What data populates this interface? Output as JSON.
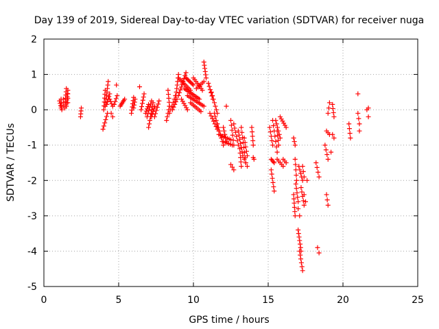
{
  "chart_data": {
    "type": "scatter",
    "title": "Day 139 of 2019, Sidereal Day-to-day VTEC variation (SDTVAR) for receiver nuga",
    "xlabel": "GPS time / hours",
    "ylabel": "SDTVAR / TECUs",
    "xlim": [
      0,
      25
    ],
    "ylim": [
      -5,
      2
    ],
    "xticks": [
      0,
      5,
      10,
      15,
      20,
      25
    ],
    "yticks": [
      -5,
      -4,
      -3,
      -2,
      -1,
      0,
      1,
      2
    ],
    "grid": true,
    "marker": "+",
    "colors": {
      "points": "#ff0000",
      "axes": "#000000",
      "grid": "#a0a0a0"
    },
    "segments": [
      {
        "x0": 1.05,
        "y0": 0.25,
        "x1": 1.15,
        "y1": 0.05,
        "n": 4
      },
      {
        "x0": 1.15,
        "y0": 0.3,
        "x1": 1.2,
        "y1": 0.0,
        "n": 4
      },
      {
        "x0": 1.3,
        "y0": 0.1,
        "x1": 1.3,
        "y1": 0.3,
        "n": 3
      },
      {
        "x0": 1.4,
        "y0": 0.05,
        "x1": 1.5,
        "y1": 0.6,
        "n": 7
      },
      {
        "x0": 1.5,
        "y0": 0.1,
        "x1": 1.6,
        "y1": 0.55,
        "n": 6
      },
      {
        "x0": 1.6,
        "y0": 0.2,
        "x1": 1.6,
        "y1": 0.45,
        "n": 3
      },
      {
        "x0": 2.45,
        "y0": -0.2,
        "x1": 2.5,
        "y1": 0.05,
        "n": 4
      },
      {
        "x0": 3.95,
        "y0": -0.55,
        "x1": 4.25,
        "y1": -0.1,
        "n": 6
      },
      {
        "x0": 4.0,
        "y0": 0.0,
        "x1": 4.1,
        "y1": 0.55,
        "n": 6
      },
      {
        "x0": 4.1,
        "y0": 0.1,
        "x1": 4.3,
        "y1": 0.8,
        "n": 8
      },
      {
        "x0": 4.2,
        "y0": 0.15,
        "x1": 4.4,
        "y1": 0.45,
        "n": 5
      },
      {
        "x0": 4.4,
        "y0": 0.3,
        "x1": 4.6,
        "y1": 0.1,
        "n": 4
      },
      {
        "x0": 4.5,
        "y0": -0.1,
        "x1": 4.6,
        "y1": -0.2,
        "n": 2
      },
      {
        "x0": 4.7,
        "y0": 0.15,
        "x1": 4.9,
        "y1": 0.4,
        "n": 4
      },
      {
        "x0": 4.85,
        "y0": 0.7,
        "x1": 4.85,
        "y1": 0.7,
        "n": 1
      },
      {
        "x0": 5.1,
        "y0": 0.1,
        "x1": 5.4,
        "y1": 0.3,
        "n": 6
      },
      {
        "x0": 5.85,
        "y0": -0.1,
        "x1": 6.0,
        "y1": 0.35,
        "n": 6
      },
      {
        "x0": 6.0,
        "y0": 0.05,
        "x1": 6.1,
        "y1": 0.3,
        "n": 4
      },
      {
        "x0": 6.4,
        "y0": 0.65,
        "x1": 6.4,
        "y1": 0.65,
        "n": 1
      },
      {
        "x0": 6.5,
        "y0": 0.0,
        "x1": 6.7,
        "y1": 0.45,
        "n": 6
      },
      {
        "x0": 6.8,
        "y0": -0.1,
        "x1": 7.0,
        "y1": 0.15,
        "n": 5
      },
      {
        "x0": 6.9,
        "y0": -0.2,
        "x1": 7.2,
        "y1": 0.25,
        "n": 6
      },
      {
        "x0": 7.0,
        "y0": -0.5,
        "x1": 7.3,
        "y1": 0.2,
        "n": 8
      },
      {
        "x0": 7.2,
        "y0": -0.2,
        "x1": 7.4,
        "y1": 0.1,
        "n": 5
      },
      {
        "x0": 7.4,
        "y0": -0.2,
        "x1": 7.7,
        "y1": 0.25,
        "n": 6
      },
      {
        "x0": 8.3,
        "y0": 0.55,
        "x1": 8.4,
        "y1": 0.1,
        "n": 5
      },
      {
        "x0": 8.2,
        "y0": -0.3,
        "x1": 8.4,
        "y1": 0.1,
        "n": 5
      },
      {
        "x0": 8.4,
        "y0": -0.1,
        "x1": 8.8,
        "y1": 0.4,
        "n": 6
      },
      {
        "x0": 8.6,
        "y0": 0.0,
        "x1": 8.9,
        "y1": 0.3,
        "n": 5
      },
      {
        "x0": 8.8,
        "y0": 0.3,
        "x1": 9.0,
        "y1": 1.0,
        "n": 8
      },
      {
        "x0": 9.0,
        "y0": 0.4,
        "x1": 9.5,
        "y1": 1.05,
        "n": 9
      },
      {
        "x0": 9.0,
        "y0": 0.9,
        "x1": 9.8,
        "y1": 0.55,
        "n": 10
      },
      {
        "x0": 9.2,
        "y0": 0.3,
        "x1": 9.6,
        "y1": 0.0,
        "n": 6
      },
      {
        "x0": 9.5,
        "y0": 0.9,
        "x1": 10.0,
        "y1": 0.7,
        "n": 8
      },
      {
        "x0": 9.4,
        "y0": 0.6,
        "x1": 10.4,
        "y1": 0.3,
        "n": 12
      },
      {
        "x0": 9.6,
        "y0": 0.4,
        "x1": 10.7,
        "y1": 0.1,
        "n": 12
      },
      {
        "x0": 9.8,
        "y0": 0.2,
        "x1": 10.5,
        "y1": -0.05,
        "n": 8
      },
      {
        "x0": 10.0,
        "y0": 0.9,
        "x1": 10.6,
        "y1": 0.55,
        "n": 8
      },
      {
        "x0": 10.2,
        "y0": 0.6,
        "x1": 10.7,
        "y1": 0.8,
        "n": 6
      },
      {
        "x0": 10.7,
        "y0": 1.35,
        "x1": 10.85,
        "y1": 0.9,
        "n": 6
      },
      {
        "x0": 11.0,
        "y0": 0.75,
        "x1": 11.3,
        "y1": 0.3,
        "n": 6
      },
      {
        "x0": 11.2,
        "y0": 0.5,
        "x1": 11.6,
        "y1": -0.1,
        "n": 7
      },
      {
        "x0": 11.1,
        "y0": -0.1,
        "x1": 11.6,
        "y1": -0.55,
        "n": 7
      },
      {
        "x0": 11.4,
        "y0": -0.1,
        "x1": 11.7,
        "y1": -0.6,
        "n": 6
      },
      {
        "x0": 11.6,
        "y0": -0.4,
        "x1": 12.0,
        "y1": -1.0,
        "n": 7
      },
      {
        "x0": 11.7,
        "y0": -0.7,
        "x1": 12.5,
        "y1": -0.85,
        "n": 8
      },
      {
        "x0": 12.0,
        "y0": -0.9,
        "x1": 12.6,
        "y1": -1.0,
        "n": 6
      },
      {
        "x0": 12.0,
        "y0": -0.5,
        "x1": 12.2,
        "y1": -0.9,
        "n": 5
      },
      {
        "x0": 12.2,
        "y0": 0.1,
        "x1": 12.2,
        "y1": 0.1,
        "n": 1
      },
      {
        "x0": 12.5,
        "y0": -1.55,
        "x1": 12.7,
        "y1": -1.7,
        "n": 3
      },
      {
        "x0": 12.5,
        "y0": -0.3,
        "x1": 12.7,
        "y1": -1.0,
        "n": 6
      },
      {
        "x0": 12.7,
        "y0": -0.4,
        "x1": 13.0,
        "y1": -1.0,
        "n": 6
      },
      {
        "x0": 13.0,
        "y0": -0.6,
        "x1": 13.3,
        "y1": -1.3,
        "n": 7
      },
      {
        "x0": 13.1,
        "y0": -1.1,
        "x1": 13.2,
        "y1": -1.6,
        "n": 5
      },
      {
        "x0": 13.2,
        "y0": -0.5,
        "x1": 13.5,
        "y1": -1.5,
        "n": 8
      },
      {
        "x0": 13.4,
        "y0": -0.8,
        "x1": 13.6,
        "y1": -1.3,
        "n": 5
      },
      {
        "x0": 13.4,
        "y0": -1.4,
        "x1": 13.6,
        "y1": -1.6,
        "n": 3
      },
      {
        "x0": 13.9,
        "y0": -0.5,
        "x1": 14.0,
        "y1": -1.0,
        "n": 5
      },
      {
        "x0": 14.0,
        "y0": -1.35,
        "x1": 14.05,
        "y1": -1.4,
        "n": 2
      },
      {
        "x0": 15.1,
        "y0": -0.5,
        "x1": 15.3,
        "y1": -1.0,
        "n": 5
      },
      {
        "x0": 15.2,
        "y0": -1.4,
        "x1": 15.4,
        "y1": -1.5,
        "n": 4
      },
      {
        "x0": 15.2,
        "y0": -1.7,
        "x1": 15.4,
        "y1": -2.3,
        "n": 6
      },
      {
        "x0": 15.3,
        "y0": -0.3,
        "x1": 15.6,
        "y1": -1.2,
        "n": 7
      },
      {
        "x0": 15.5,
        "y0": -0.3,
        "x1": 15.8,
        "y1": -0.8,
        "n": 6
      },
      {
        "x0": 15.6,
        "y0": -0.6,
        "x1": 15.7,
        "y1": -1.0,
        "n": 4
      },
      {
        "x0": 15.8,
        "y0": -0.2,
        "x1": 16.2,
        "y1": -0.5,
        "n": 6
      },
      {
        "x0": 15.6,
        "y0": -1.4,
        "x1": 16.0,
        "y1": -1.6,
        "n": 5
      },
      {
        "x0": 16.0,
        "y0": -1.4,
        "x1": 16.2,
        "y1": -1.5,
        "n": 3
      },
      {
        "x0": 16.7,
        "y0": -0.8,
        "x1": 16.8,
        "y1": -1.0,
        "n": 3
      },
      {
        "x0": 16.7,
        "y0": -2.4,
        "x1": 16.8,
        "y1": -3.0,
        "n": 6
      },
      {
        "x0": 16.8,
        "y0": -1.4,
        "x1": 16.9,
        "y1": -2.0,
        "n": 5
      },
      {
        "x0": 16.85,
        "y0": -2.1,
        "x1": 17.0,
        "y1": -2.6,
        "n": 5
      },
      {
        "x0": 17.0,
        "y0": -2.8,
        "x1": 17.1,
        "y1": -3.0,
        "n": 2
      },
      {
        "x0": 17.0,
        "y0": -3.4,
        "x1": 17.2,
        "y1": -4.0,
        "n": 7
      },
      {
        "x0": 17.05,
        "y0": -1.6,
        "x1": 17.3,
        "y1": -2.0,
        "n": 5
      },
      {
        "x0": 17.1,
        "y0": -4.0,
        "x1": 17.3,
        "y1": -4.55,
        "n": 6
      },
      {
        "x0": 17.2,
        "y0": -2.2,
        "x1": 17.4,
        "y1": -2.7,
        "n": 5
      },
      {
        "x0": 17.3,
        "y0": -1.6,
        "x1": 17.4,
        "y1": -1.9,
        "n": 3
      },
      {
        "x0": 17.4,
        "y0": -2.4,
        "x1": 17.5,
        "y1": -2.6,
        "n": 2
      },
      {
        "x0": 17.6,
        "y0": -2.0,
        "x1": 17.6,
        "y1": -2.0,
        "n": 1
      },
      {
        "x0": 18.2,
        "y0": -1.5,
        "x1": 18.4,
        "y1": -1.9,
        "n": 4
      },
      {
        "x0": 18.3,
        "y0": -3.9,
        "x1": 18.4,
        "y1": -4.05,
        "n": 2
      },
      {
        "x0": 18.8,
        "y0": -1.0,
        "x1": 19.0,
        "y1": -1.4,
        "n": 4
      },
      {
        "x0": 18.9,
        "y0": -0.6,
        "x1": 19.1,
        "y1": -0.7,
        "n": 3
      },
      {
        "x0": 18.9,
        "y0": -2.4,
        "x1": 19.0,
        "y1": -2.7,
        "n": 3
      },
      {
        "x0": 19.0,
        "y0": -0.1,
        "x1": 19.1,
        "y1": 0.2,
        "n": 3
      },
      {
        "x0": 19.3,
        "y0": 0.15,
        "x1": 19.4,
        "y1": -0.2,
        "n": 4
      },
      {
        "x0": 19.3,
        "y0": -0.7,
        "x1": 19.4,
        "y1": -0.8,
        "n": 2
      },
      {
        "x0": 19.2,
        "y0": -1.2,
        "x1": 19.3,
        "y1": -1.2,
        "n": 1
      },
      {
        "x0": 20.4,
        "y0": -0.4,
        "x1": 20.5,
        "y1": -0.8,
        "n": 4
      },
      {
        "x0": 21.0,
        "y0": 0.45,
        "x1": 21.0,
        "y1": 0.45,
        "n": 1
      },
      {
        "x0": 21.0,
        "y0": -0.1,
        "x1": 21.1,
        "y1": -0.4,
        "n": 3
      },
      {
        "x0": 21.1,
        "y0": -0.6,
        "x1": 21.1,
        "y1": -0.6,
        "n": 1
      },
      {
        "x0": 21.6,
        "y0": 0.0,
        "x1": 21.7,
        "y1": 0.05,
        "n": 2
      },
      {
        "x0": 21.7,
        "y0": -0.2,
        "x1": 21.7,
        "y1": -0.2,
        "n": 1
      }
    ]
  }
}
